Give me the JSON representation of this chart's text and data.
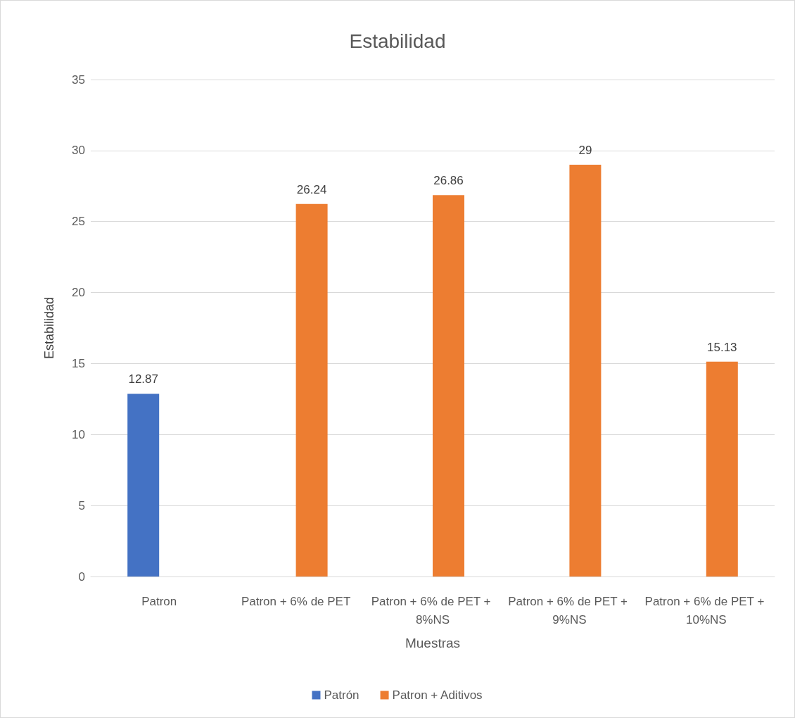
{
  "chart_data": {
    "type": "bar",
    "title": "Estabilidad",
    "xlabel": "Muestras",
    "ylabel": "Estabilidad",
    "categories": [
      "Patron",
      "Patron + 6% de PET",
      "Patron + 6% de PET + 8%NS",
      "Patron + 6% de PET + 9%NS",
      "Patron + 6% de PET + 10%NS"
    ],
    "series": [
      {
        "name": "Patrón",
        "color": "#4472c4",
        "values": [
          12.87,
          null,
          null,
          null,
          null
        ]
      },
      {
        "name": "Patron + Aditivos",
        "color": "#ed7d31",
        "values": [
          null,
          26.24,
          26.86,
          29,
          15.13
        ]
      }
    ],
    "ylim": [
      0,
      35
    ],
    "yticks": [
      0,
      5,
      10,
      15,
      20,
      25,
      30,
      35
    ],
    "grid": "y",
    "legend": "bottom",
    "data_labels": true
  }
}
